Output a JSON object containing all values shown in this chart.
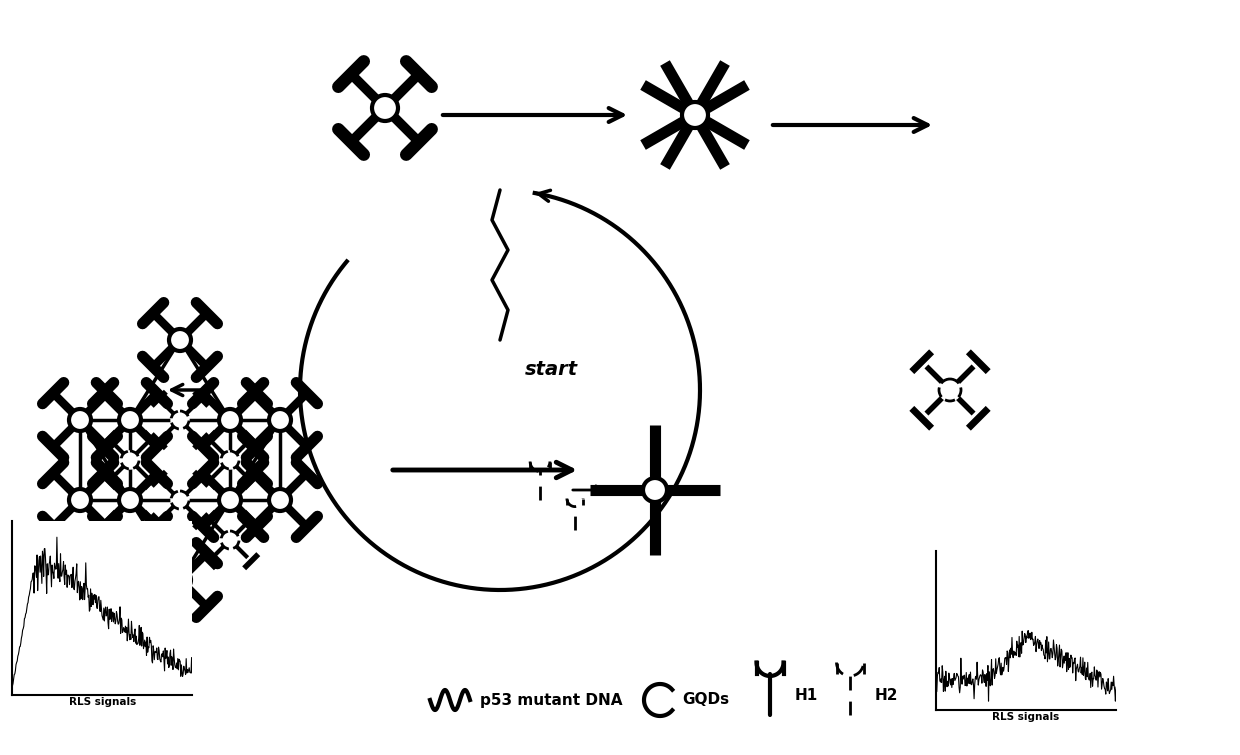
{
  "bg_color": "#ffffff",
  "figsize": [
    12.4,
    7.55
  ],
  "dpi": 100,
  "rls_label": "RLS signals",
  "legend_items": [
    "p53 mutant DNA",
    "GQDs",
    "H1",
    "H2"
  ]
}
